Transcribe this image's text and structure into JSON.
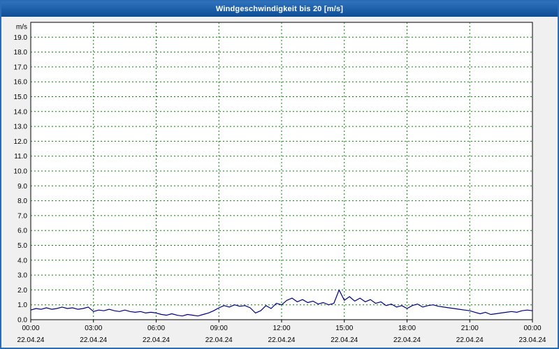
{
  "title_bar": {
    "text": "Windgeschwindigkeit bis 20 [m/s]"
  },
  "colors": {
    "title_bar_top": "#2f72bd",
    "title_bar_bottom": "#0d4d95",
    "frame_border": "#2b6cb5",
    "page_background": "#f0f0f0",
    "plot_background": "#ffffff",
    "plot_border": "#000000",
    "grid": "#008000",
    "line": "#000080",
    "text": "#000000"
  },
  "chart_data": {
    "type": "line",
    "title": "Windgeschwindigkeit bis 20 [m/s]",
    "ylabel": "m/s",
    "ylim": [
      0,
      20
    ],
    "xlim_hours": [
      0,
      24
    ],
    "grid": "dashed-green",
    "legend": "none",
    "y_tick_labels": [
      "0.0",
      "1.0",
      "2.0",
      "3.0",
      "4.0",
      "5.0",
      "6.0",
      "7.0",
      "8.0",
      "9.0",
      "10.0",
      "11.0",
      "12.0",
      "13.0",
      "14.0",
      "15.0",
      "16.0",
      "17.0",
      "18.0",
      "19.0"
    ],
    "x_ticks": [
      {
        "time": "00:00",
        "date": "22.04.24"
      },
      {
        "time": "03:00",
        "date": "22.04.24"
      },
      {
        "time": "06:00",
        "date": "22.04.24"
      },
      {
        "time": "09:00",
        "date": "22.04.24"
      },
      {
        "time": "12:00",
        "date": "22.04.24"
      },
      {
        "time": "15:00",
        "date": "22.04.24"
      },
      {
        "time": "18:00",
        "date": "22.04.24"
      },
      {
        "time": "21:00",
        "date": "22.04.24"
      },
      {
        "time": "00:00",
        "date": "23.04.24"
      }
    ],
    "series": [
      {
        "name": "Windgeschwindigkeit [m/s]",
        "color": "#000080",
        "x_start_hour": 0,
        "x_step_hours": 0.25,
        "values": [
          0.65,
          0.75,
          0.7,
          0.8,
          0.7,
          0.75,
          0.85,
          0.75,
          0.8,
          0.7,
          0.75,
          0.85,
          0.55,
          0.65,
          0.6,
          0.7,
          0.6,
          0.55,
          0.65,
          0.55,
          0.5,
          0.55,
          0.45,
          0.5,
          0.45,
          0.35,
          0.3,
          0.4,
          0.3,
          0.25,
          0.35,
          0.3,
          0.25,
          0.35,
          0.45,
          0.6,
          0.8,
          0.95,
          0.85,
          1.0,
          0.9,
          0.95,
          0.8,
          0.45,
          0.6,
          0.95,
          0.75,
          1.1,
          1.0,
          1.3,
          1.45,
          1.2,
          1.35,
          1.15,
          1.25,
          1.05,
          1.15,
          1.0,
          1.1,
          2.0,
          1.3,
          1.55,
          1.25,
          1.45,
          1.2,
          1.35,
          1.1,
          1.2,
          0.95,
          1.05,
          0.85,
          0.95,
          0.75,
          0.95,
          1.05,
          0.85,
          0.95,
          1.0,
          0.9,
          0.85,
          0.8,
          0.75,
          0.7,
          0.65,
          0.6,
          0.5,
          0.4,
          0.5,
          0.35,
          0.4,
          0.45,
          0.5,
          0.55,
          0.5,
          0.6,
          0.65,
          0.6
        ]
      }
    ]
  }
}
